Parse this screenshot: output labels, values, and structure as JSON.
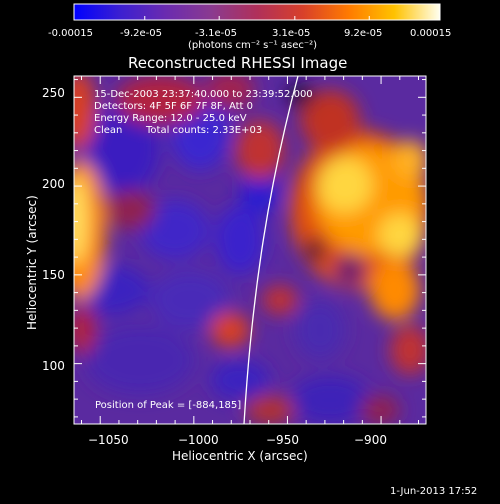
{
  "colorbar": {
    "tick_labels": [
      "-0.00015",
      "-9.2e-05",
      "-3.1e-05",
      "3.1e-05",
      "9.2e-05",
      "0.00015"
    ],
    "unit_label": "(photons cm⁻² s⁻¹ asec⁻²)",
    "range": [
      -0.00015,
      0.00015
    ],
    "colors": [
      "#0000ff",
      "#3b1fd1",
      "#6a2bb0",
      "#8a3a90",
      "#b0305a",
      "#d8402a",
      "#ff7a00",
      "#ffc200",
      "#fffff0"
    ]
  },
  "plot": {
    "title": "Reconstructed RHESSI Image",
    "xlabel": "Heliocentric X (arcsec)",
    "ylabel": "Heliocentric Y (arcsec)",
    "xlim": [
      -1064,
      -876
    ],
    "ylim": [
      66,
      262
    ],
    "x_ticks": [
      -1050,
      -1000,
      -950,
      -900
    ],
    "y_ticks": [
      100,
      150,
      200,
      250
    ],
    "x_tick_labels": [
      "−1050",
      "−1000",
      "−950",
      "−900"
    ],
    "y_tick_labels": [
      "100",
      "150",
      "200",
      "250"
    ]
  },
  "info": {
    "line1": "15-Dec-2003 23:37:40.000 to 23:39:52.000",
    "line2": "Detectors: 4F 5F 6F 7F 8F, Att 0",
    "line3": "Energy Range: 12.0 - 25.0 keV",
    "line4_a": "Clean",
    "line4_b": "Total counts: 2.33E+03",
    "peak": "Position of Peak = [-884,185]"
  },
  "footer": {
    "timestamp": "1-Jun-2013 17:52"
  }
}
